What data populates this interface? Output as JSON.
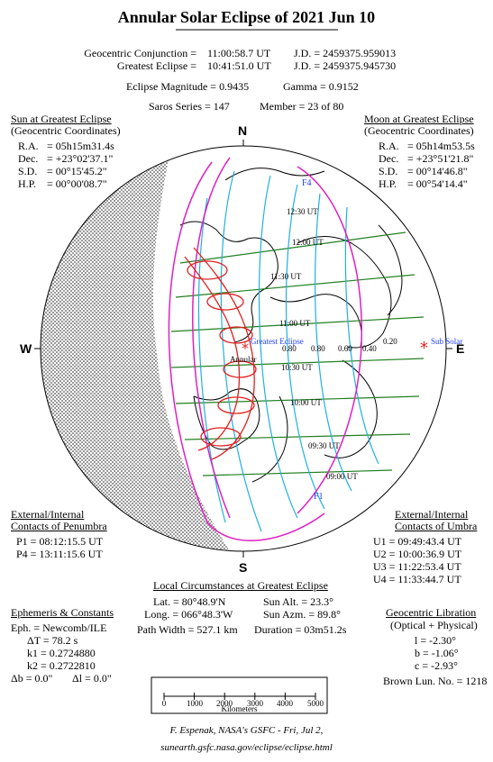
{
  "title": "Annular Solar Eclipse of  2021 Jun 10",
  "header": {
    "conj_label": "Geocentric Conjunction =",
    "conj_time": "11:00:58.7 UT",
    "conj_jd": "J.D. = 2459375.959013",
    "ge_label": "Greatest Eclipse =",
    "ge_time": "10:41:51.0 UT",
    "ge_jd": "J.D. = 2459375.945730",
    "magnitude": "Eclipse Magnitude = 0.9435",
    "gamma": "Gamma = 0.9152",
    "saros": "Saros Series = 147",
    "member": "Member = 23 of 80"
  },
  "sun": {
    "heading1": "Sun at Greatest Eclipse",
    "heading2": "(Geocentric Coordinates)",
    "rows": [
      {
        "label": "R.A.",
        "value": "= 05h15m31.4s"
      },
      {
        "label": "Dec.",
        "value": "= +23°02'37.1\""
      },
      {
        "label": "S.D.",
        "value": "= 00°15'45.2\""
      },
      {
        "label": "H.P.",
        "value": "= 00°00'08.7\""
      }
    ]
  },
  "moon": {
    "heading1": "Moon at Greatest Eclipse",
    "heading2": "(Geocentric Coordinates)",
    "rows": [
      {
        "label": "R.A.",
        "value": "= 05h14m53.5s"
      },
      {
        "label": "Dec.",
        "value": "= +23°51'21.8\""
      },
      {
        "label": "S.D.",
        "value": "= 00°14'46.8\""
      },
      {
        "label": "H.P.",
        "value": "= 00°54'14.4\""
      }
    ]
  },
  "compass": {
    "n": "N",
    "s": "S",
    "e": "E",
    "w": "W"
  },
  "globe_labels": {
    "f4": "F4",
    "f1": "F1",
    "t1230": "12:30 UT",
    "t1200": "12:00 UT",
    "t1130": "11:30 UT",
    "t1100": "11:00 UT",
    "t1030": "10:30 UT",
    "t1000": "10:00 UT",
    "t0930": "09:30 UT",
    "t0900": "09:00 UT",
    "greatest": "Greatest Eclipse",
    "annular": "Annular",
    "subsolar": "Sub Solar",
    "m080a": "0.80",
    "m080b": "0.80",
    "m060": "0.60",
    "m040": "0.40",
    "m020": "0.20"
  },
  "penumbra": {
    "heading1": "External/Internal",
    "heading2": "Contacts of Penumbra",
    "p1": "P1 = 08:12:15.5 UT",
    "p4": "P4 = 13:11:15.6 UT"
  },
  "umbra": {
    "heading1": "External/Internal",
    "heading2": "Contacts of Umbra",
    "u1": "U1 = 09:49:43.4 UT",
    "u2": "U2 = 10:00:36.9 UT",
    "u3": "U3 = 11:22:53.4 UT",
    "u4": "U4 = 11:33:44.7 UT"
  },
  "local": {
    "heading": "Local Circumstances at Greatest Eclipse",
    "lat": "Lat. = 80°48.9'N",
    "long": "Long. = 066°48.3'W",
    "path_width": "Path Width = 527.1 km",
    "sun_alt": "Sun Alt. = 23.3°",
    "sun_azm": "Sun Azm. = 89.8°",
    "duration": "Duration = 03m51.2s"
  },
  "ephemeris": {
    "heading": "Ephemeris & Constants",
    "eph": "Eph. = Newcomb/ILE",
    "dt": "ΔT = 78.2 s",
    "k1": "k1 = 0.2724880",
    "k2": "k2 = 0.2722810",
    "db": "Δb = 0.0\"",
    "dl": "Δl = 0.0\""
  },
  "libration": {
    "heading": "Geocentric Libration",
    "sub": "(Optical + Physical)",
    "l": "l = -2.30°",
    "b": "b = -1.06°",
    "c": "c = -2.93°",
    "brown": "Brown Lun. No. = 1218"
  },
  "scale": {
    "ticks": [
      "0",
      "1000",
      "2000",
      "3000",
      "4000",
      "5000"
    ],
    "unit": "Kilometers"
  },
  "footer": {
    "credit": "F. Espenak, NASA's GSFC - Fri, Jul 2,",
    "url": "sunearth.gsfc.nasa.gov/eclipse/eclipse.html"
  },
  "colors": {
    "penumbra_limit": "#e020c0",
    "time_lines": "#20b0e0",
    "umbra_path": "#e02020",
    "meridians": "#208020",
    "label_blue": "#2040ff"
  }
}
